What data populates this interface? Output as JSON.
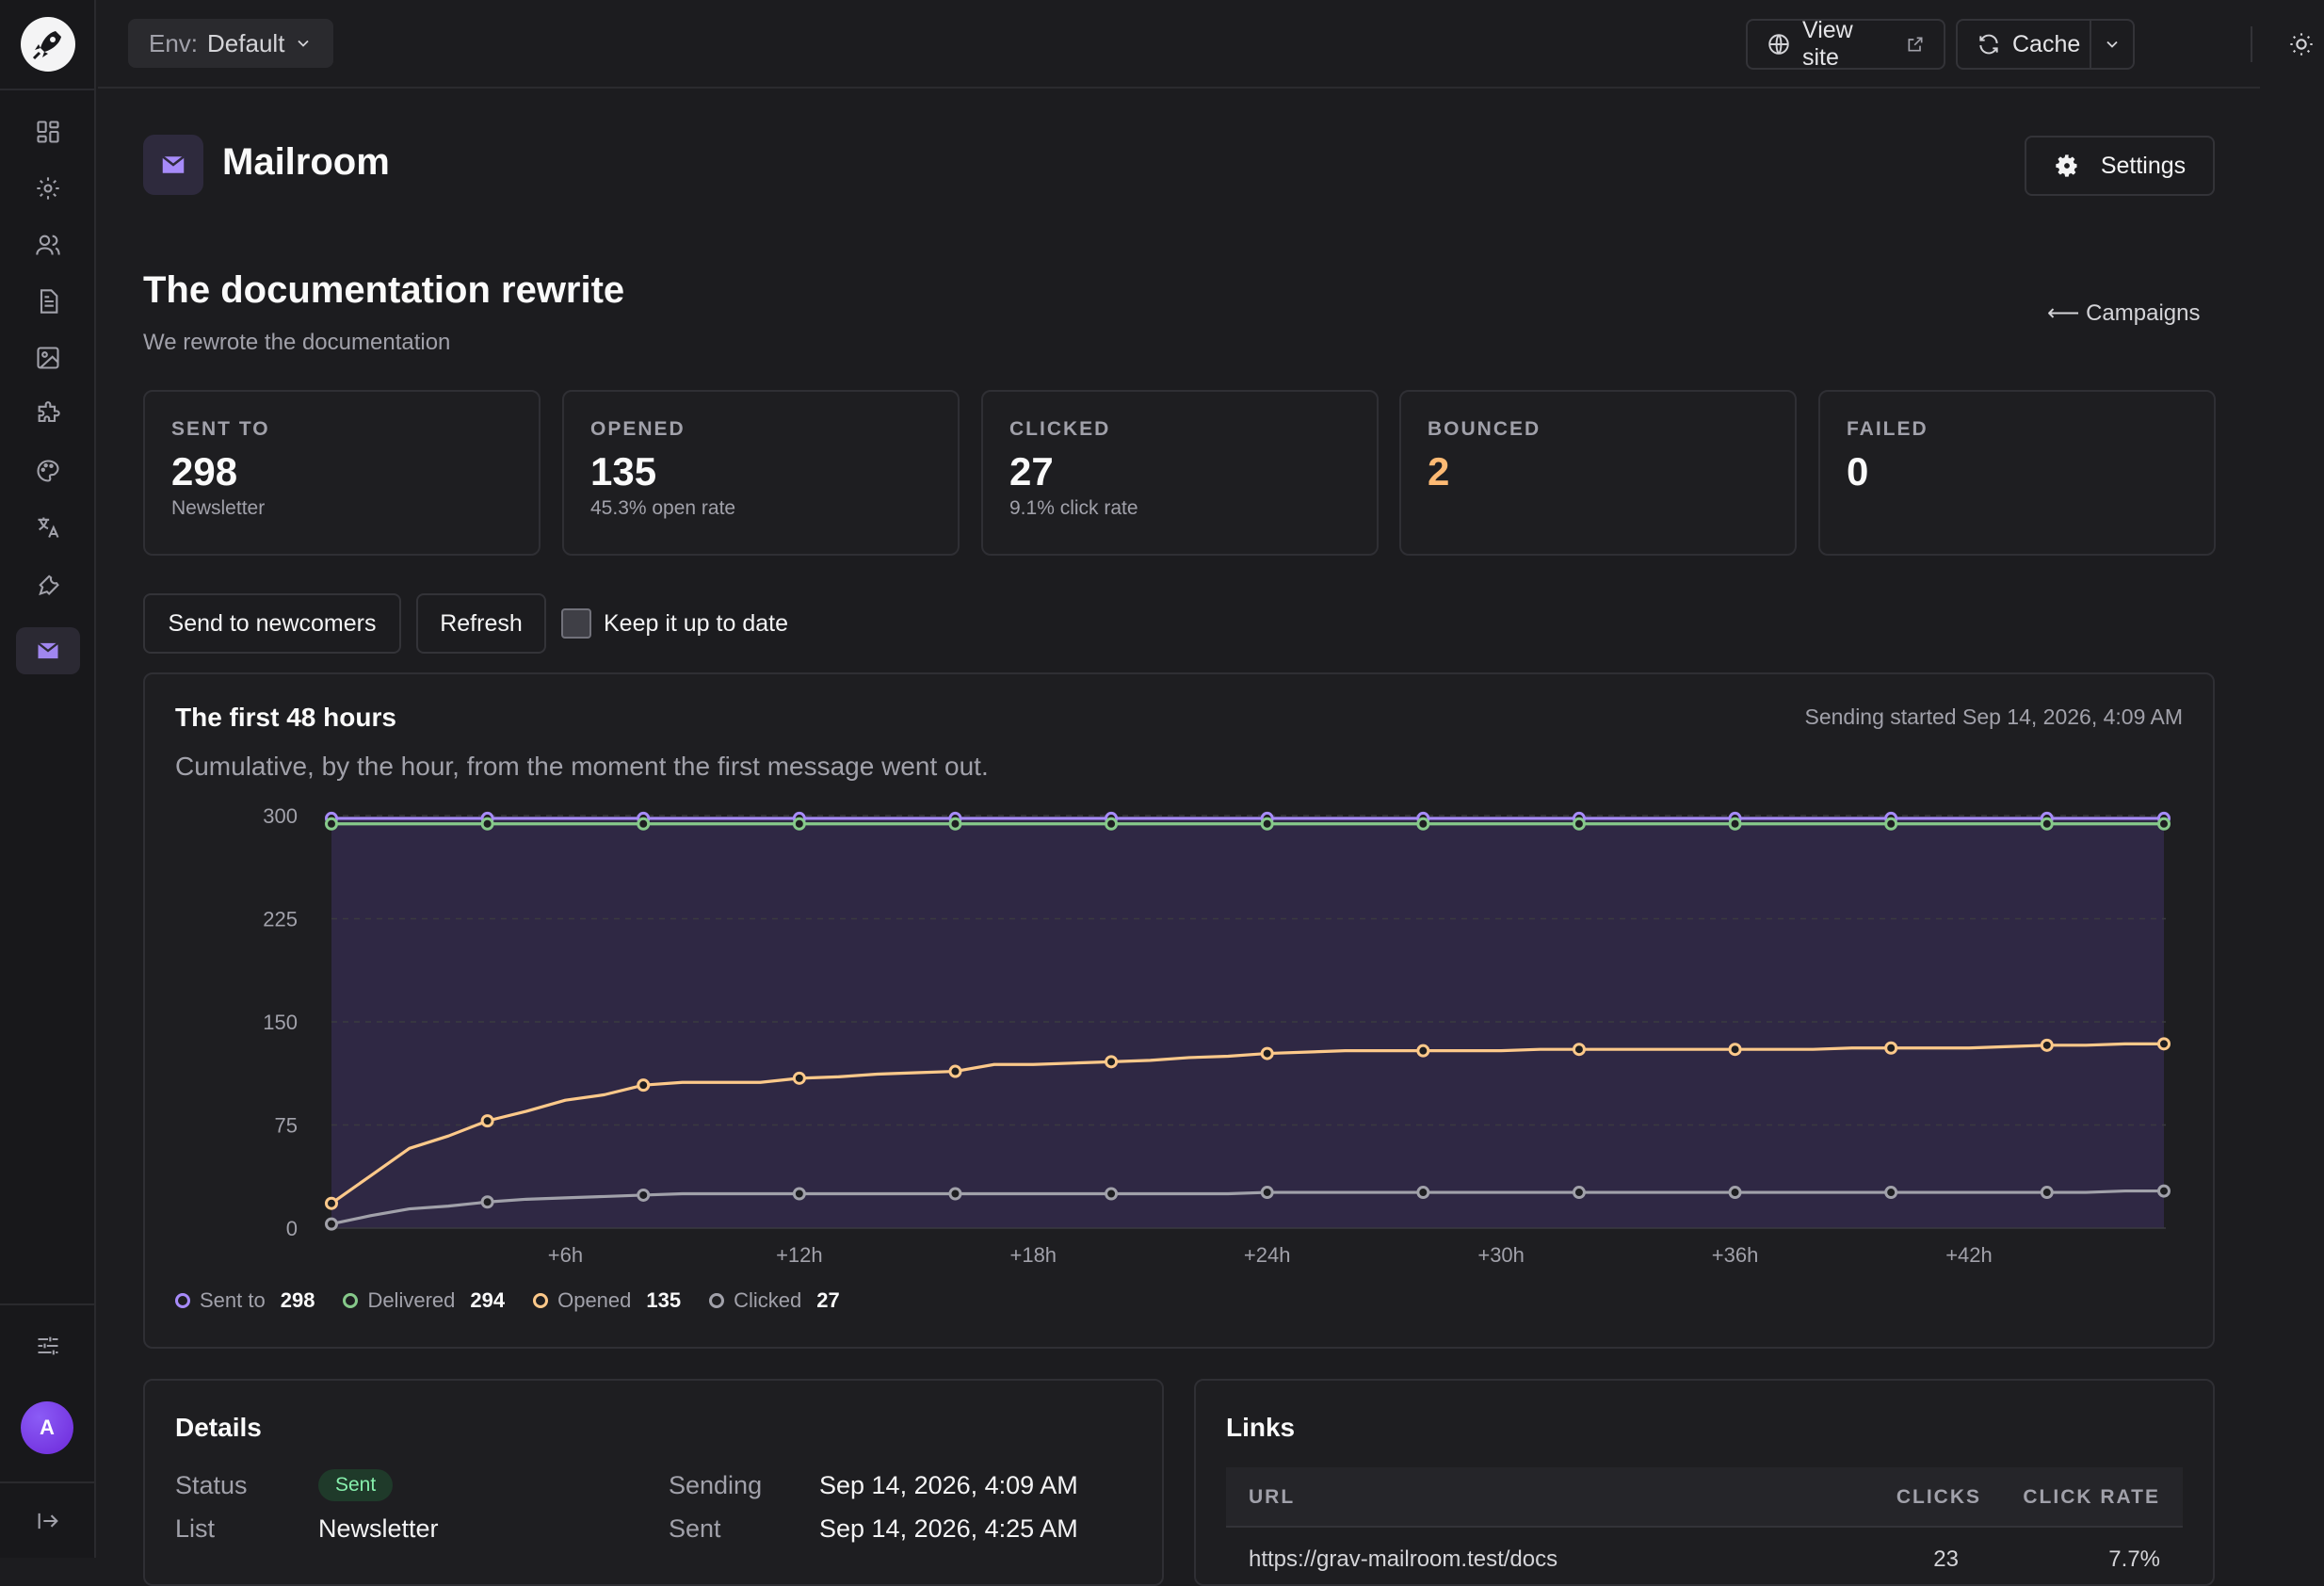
{
  "env": {
    "label": "Env:",
    "value": "Default"
  },
  "topbar": {
    "view_site": "View site",
    "cache": "Cache"
  },
  "page": {
    "title": "Mailroom",
    "settings": "Settings"
  },
  "campaign": {
    "title": "The documentation rewrite",
    "subtitle": "We rewrote the documentation",
    "back": "⟵ Campaigns"
  },
  "stats": [
    {
      "label": "SENT TO",
      "value": "298",
      "note": "Newsletter"
    },
    {
      "label": "OPENED",
      "value": "135",
      "note": "45.3% open rate"
    },
    {
      "label": "CLICKED",
      "value": "27",
      "note": "9.1% click rate"
    },
    {
      "label": "BOUNCED",
      "value": "2",
      "note": ""
    },
    {
      "label": "FAILED",
      "value": "0",
      "note": ""
    }
  ],
  "actions": {
    "send_newcomers": "Send to newcomers",
    "refresh": "Refresh",
    "keep_updated": "Keep it up to date"
  },
  "chart_card": {
    "title": "The first 48 hours",
    "subtitle": "Cumulative, by the hour, from the moment the first message went out.",
    "meta": "Sending started Sep 14, 2026, 4:09 AM"
  },
  "colors": {
    "sent": "#a78bfa",
    "delivered": "#86c98a",
    "opened": "#fdc98a",
    "clicked": "#a1a1aa",
    "accent": "#8b5cf6"
  },
  "chart_data": {
    "type": "line",
    "x_ticks": [
      "+6h",
      "+12h",
      "+18h",
      "+24h",
      "+30h",
      "+36h",
      "+42h"
    ],
    "y_ticks": [
      0,
      75,
      150,
      225,
      300
    ],
    "ylim": [
      0,
      300
    ],
    "xlim": [
      0,
      47
    ],
    "grid": true,
    "legend": "bottom-left",
    "x": [
      0,
      1,
      2,
      3,
      4,
      5,
      6,
      7,
      8,
      9,
      10,
      11,
      12,
      13,
      14,
      15,
      16,
      17,
      18,
      19,
      20,
      21,
      22,
      23,
      24,
      25,
      26,
      27,
      28,
      29,
      30,
      31,
      32,
      33,
      34,
      35,
      36,
      37,
      38,
      39,
      40,
      41,
      42,
      43,
      44,
      45,
      46,
      47
    ],
    "marker_x": [
      0,
      4,
      8,
      12,
      16,
      20,
      24,
      28,
      32,
      36,
      40,
      44,
      47
    ],
    "series": [
      {
        "name": "Sent to",
        "total": "298",
        "color": "#a78bfa",
        "values": [
          298,
          298,
          298,
          298,
          298,
          298,
          298,
          298,
          298,
          298,
          298,
          298,
          298,
          298,
          298,
          298,
          298,
          298,
          298,
          298,
          298,
          298,
          298,
          298,
          298,
          298,
          298,
          298,
          298,
          298,
          298,
          298,
          298,
          298,
          298,
          298,
          298,
          298,
          298,
          298,
          298,
          298,
          298,
          298,
          298,
          298,
          298,
          298
        ]
      },
      {
        "name": "Delivered",
        "total": "294",
        "color": "#86c98a",
        "values": [
          294,
          294,
          294,
          294,
          294,
          294,
          294,
          294,
          294,
          294,
          294,
          294,
          294,
          294,
          294,
          294,
          294,
          294,
          294,
          294,
          294,
          294,
          294,
          294,
          294,
          294,
          294,
          294,
          294,
          294,
          294,
          294,
          294,
          294,
          294,
          294,
          294,
          294,
          294,
          294,
          294,
          294,
          294,
          294,
          294,
          294,
          294,
          294
        ]
      },
      {
        "name": "Opened",
        "total": "135",
        "color": "#fdc98a",
        "values": [
          18,
          38,
          58,
          67,
          78,
          85,
          93,
          97,
          104,
          106,
          106,
          106,
          109,
          110,
          112,
          113,
          114,
          119,
          119,
          120,
          121,
          122,
          124,
          125,
          127,
          128,
          129,
          129,
          129,
          129,
          129,
          130,
          130,
          130,
          130,
          130,
          130,
          130,
          130,
          131,
          131,
          131,
          131,
          132,
          133,
          133,
          134,
          134
        ]
      },
      {
        "name": "Clicked",
        "total": "27",
        "color": "#a1a1aa",
        "values": [
          3,
          9,
          14,
          16,
          19,
          21,
          22,
          23,
          24,
          25,
          25,
          25,
          25,
          25,
          25,
          25,
          25,
          25,
          25,
          25,
          25,
          25,
          25,
          25,
          26,
          26,
          26,
          26,
          26,
          26,
          26,
          26,
          26,
          26,
          26,
          26,
          26,
          26,
          26,
          26,
          26,
          26,
          26,
          26,
          26,
          26,
          27,
          27
        ]
      }
    ]
  },
  "details": {
    "title": "Details",
    "status_k": "Status",
    "status_v": "Sent",
    "list_k": "List",
    "list_v": "Newsletter",
    "sending_k": "Sending",
    "sending_v": "Sep 14, 2026, 4:09 AM",
    "sent_k": "Sent",
    "sent_v": "Sep 14, 2026, 4:25 AM"
  },
  "links": {
    "title": "Links",
    "col_url": "URL",
    "col_clicks": "CLICKS",
    "col_rate": "CLICK RATE",
    "rows": [
      {
        "url": "https://grav-mailroom.test/docs",
        "clicks": "23",
        "rate": "7.7%"
      }
    ]
  }
}
